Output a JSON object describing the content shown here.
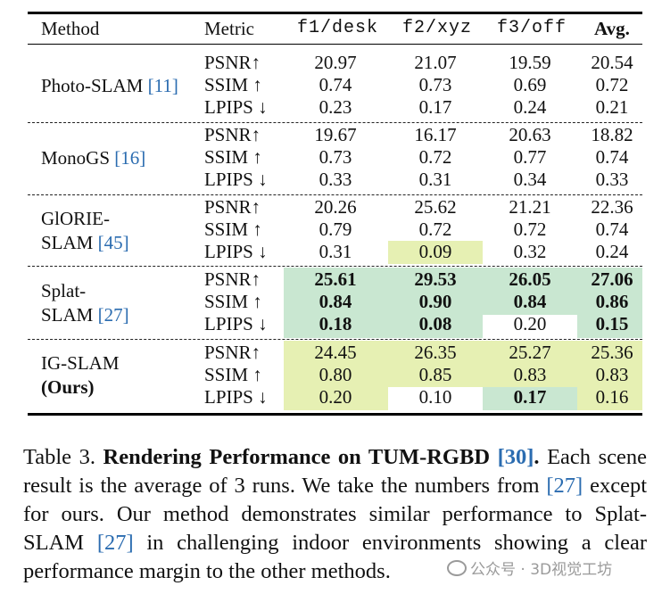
{
  "table": {
    "headers": {
      "method": "Method",
      "metric": "Metric",
      "col1": "f1/desk",
      "col2": "f2/xyz",
      "col3": "f3/off",
      "avg": "Avg."
    },
    "rows": [
      {
        "method_line1": "Photo-SLAM ",
        "ref": "[11]",
        "method_line2": "",
        "metrics": [
          "PSNR↑",
          "SSIM ↑",
          "LPIPS ↓"
        ],
        "values": [
          [
            "20.97",
            "21.07",
            "19.59",
            "20.54"
          ],
          [
            "0.74",
            "0.73",
            "0.69",
            "0.72"
          ],
          [
            "0.23",
            "0.17",
            "0.24",
            "0.21"
          ]
        ]
      },
      {
        "method_line1": "MonoGS ",
        "ref": "[16]",
        "method_line2": "",
        "metrics": [
          "PSNR↑",
          "SSIM ↑",
          "LPIPS ↓"
        ],
        "values": [
          [
            "19.67",
            "16.17",
            "20.63",
            "18.82"
          ],
          [
            "0.73",
            "0.72",
            "0.77",
            "0.74"
          ],
          [
            "0.33",
            "0.31",
            "0.34",
            "0.33"
          ]
        ]
      },
      {
        "method_line1": "GlORIE-",
        "method_line2": "SLAM ",
        "ref": "[45]",
        "metrics": [
          "PSNR↑",
          "SSIM ↑",
          "LPIPS ↓"
        ],
        "values": [
          [
            "20.26",
            "25.62",
            "21.21",
            "22.36"
          ],
          [
            "0.79",
            "0.72",
            "0.72",
            "0.74"
          ],
          [
            "0.31",
            "0.09",
            "0.32",
            "0.24"
          ]
        ]
      },
      {
        "method_line1": "Splat-",
        "method_line2": "SLAM ",
        "ref": "[27]",
        "metrics": [
          "PSNR↑",
          "SSIM ↑",
          "LPIPS ↓"
        ],
        "values": [
          [
            "25.61",
            "29.53",
            "26.05",
            "27.06"
          ],
          [
            "0.84",
            "0.90",
            "0.84",
            "0.86"
          ],
          [
            "0.18",
            "0.08",
            "0.20",
            "0.15"
          ]
        ]
      },
      {
        "method_line1": "IG-SLAM",
        "method_line2": "(Ours)",
        "ref": "",
        "metrics": [
          "PSNR↑",
          "SSIM ↑",
          "LPIPS ↓"
        ],
        "values": [
          [
            "24.45",
            "26.35",
            "25.27",
            "25.36"
          ],
          [
            "0.80",
            "0.85",
            "0.83",
            "0.83"
          ],
          [
            "0.20",
            "0.10",
            "0.17",
            "0.16"
          ]
        ]
      }
    ],
    "highlight_colors": {
      "best": "#c9e7d1",
      "second": "#e6f0b3"
    }
  },
  "caption": {
    "prefix": "Table 3. ",
    "bold_title": "Rendering Performance on TUM-RGBD ",
    "title_ref": "[30]",
    "bold_end": ".",
    "text_a": " Each scene result is the average of 3 runs. We take the numbers from ",
    "ref_a": "[27]",
    "text_b": " except for ours. Our method demonstrates similar performance to Splat-SLAM ",
    "ref_b": "[27]",
    "text_c": " in challenging indoor environments showing a clear performance margin to the other methods."
  },
  "watermark": "公众号 · 3D视觉工坊"
}
